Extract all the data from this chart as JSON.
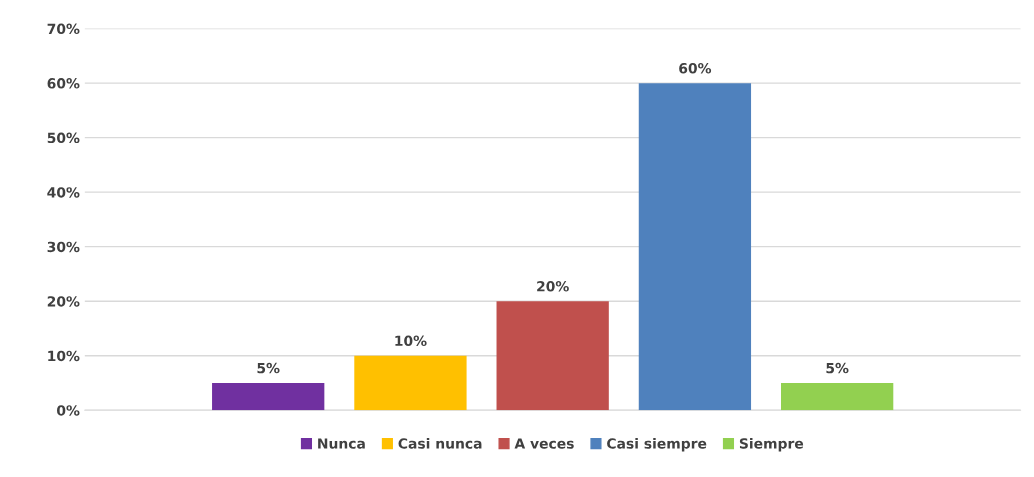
{
  "chart_data": {
    "type": "bar",
    "categories": [
      null
    ],
    "series": [
      {
        "name": "Nunca",
        "color": "#7030a0",
        "values": [
          5
        ],
        "value_labels": [
          "5%"
        ]
      },
      {
        "name": "Casi nunca",
        "color": "#ffc000",
        "values": [
          10
        ],
        "value_labels": [
          "10%"
        ]
      },
      {
        "name": "A veces",
        "color": "#c0504d",
        "values": [
          20
        ],
        "value_labels": [
          "20%"
        ]
      },
      {
        "name": "Casi siempre",
        "color": "#4f81bd",
        "values": [
          60
        ],
        "value_labels": [
          "60%"
        ]
      },
      {
        "name": "Siempre",
        "color": "#92d050",
        "values": [
          5
        ],
        "value_labels": [
          "5%"
        ]
      }
    ],
    "ylim": [
      0,
      70
    ],
    "yticks": [
      {
        "value": 0,
        "label": "0%"
      },
      {
        "value": 10,
        "label": "10%"
      },
      {
        "value": 20,
        "label": "20%"
      },
      {
        "value": 30,
        "label": "30%"
      },
      {
        "value": 40,
        "label": "40%"
      },
      {
        "value": 50,
        "label": "50%"
      },
      {
        "value": 60,
        "label": "60%"
      },
      {
        "value": 70,
        "label": "70%"
      }
    ],
    "grid": "y",
    "legend": "bottom"
  }
}
